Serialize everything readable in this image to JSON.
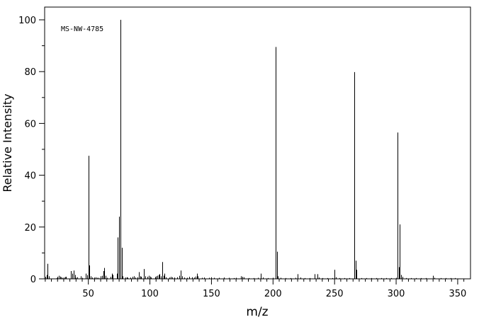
{
  "chart_data": {
    "type": "bar",
    "annotation": "MS-NW-4785",
    "xlabel": "m/z",
    "ylabel": "Relative Intensity",
    "xlim": [
      10,
      360
    ],
    "ylim": [
      0,
      104
    ],
    "x_ticks": [
      50,
      100,
      150,
      200,
      250,
      300,
      350
    ],
    "y_ticks": [
      0,
      20,
      40,
      60,
      80,
      100
    ],
    "grid": false,
    "legend": "none",
    "series": [
      {
        "peaks": [
          {
            "x": 15,
            "y": 0.8
          },
          {
            "x": 16,
            "y": 1.5
          },
          {
            "x": 17,
            "y": 5.8
          },
          {
            "x": 18,
            "y": 1.0
          },
          {
            "x": 24,
            "y": 0.3
          },
          {
            "x": 25,
            "y": 0.8
          },
          {
            "x": 26,
            "y": 1.2
          },
          {
            "x": 27,
            "y": 0.9
          },
          {
            "x": 28,
            "y": 0.6
          },
          {
            "x": 29,
            "y": 0.4
          },
          {
            "x": 30,
            "y": 0.5
          },
          {
            "x": 31,
            "y": 0.7
          },
          {
            "x": 32,
            "y": 0.8
          },
          {
            "x": 36,
            "y": 3.0
          },
          {
            "x": 37,
            "y": 2.0
          },
          {
            "x": 38,
            "y": 3.2
          },
          {
            "x": 39,
            "y": 1.5
          },
          {
            "x": 40,
            "y": 0.4
          },
          {
            "x": 41,
            "y": 0.6
          },
          {
            "x": 44,
            "y": 1.0
          },
          {
            "x": 45,
            "y": 0.4
          },
          {
            "x": 48,
            "y": 2.0
          },
          {
            "x": 49,
            "y": 1.4
          },
          {
            "x": 50,
            "y": 47.5
          },
          {
            "x": 51,
            "y": 5.2
          },
          {
            "x": 52,
            "y": 1.0
          },
          {
            "x": 53,
            "y": 0.5
          },
          {
            "x": 55,
            "y": 0.5
          },
          {
            "x": 56,
            "y": 0.6
          },
          {
            "x": 57,
            "y": 0.4
          },
          {
            "x": 58,
            "y": 0.4
          },
          {
            "x": 60,
            "y": 1.0
          },
          {
            "x": 61,
            "y": 1.2
          },
          {
            "x": 62,
            "y": 3.0
          },
          {
            "x": 63,
            "y": 4.2
          },
          {
            "x": 64,
            "y": 1.2
          },
          {
            "x": 65,
            "y": 0.4
          },
          {
            "x": 68,
            "y": 0.8
          },
          {
            "x": 69,
            "y": 2.0
          },
          {
            "x": 70,
            "y": 1.5
          },
          {
            "x": 73,
            "y": 2.0
          },
          {
            "x": 74,
            "y": 16.0
          },
          {
            "x": 75,
            "y": 24.0
          },
          {
            "x": 76,
            "y": 100.0
          },
          {
            "x": 77,
            "y": 12.0
          },
          {
            "x": 78,
            "y": 1.0
          },
          {
            "x": 80,
            "y": 0.5
          },
          {
            "x": 81,
            "y": 0.6
          },
          {
            "x": 82,
            "y": 0.4
          },
          {
            "x": 84,
            "y": 0.5
          },
          {
            "x": 86,
            "y": 0.8
          },
          {
            "x": 87,
            "y": 1.0
          },
          {
            "x": 88,
            "y": 0.5
          },
          {
            "x": 90,
            "y": 0.6
          },
          {
            "x": 91,
            "y": 2.6
          },
          {
            "x": 92,
            "y": 1.0
          },
          {
            "x": 93,
            "y": 0.8
          },
          {
            "x": 95,
            "y": 3.8
          },
          {
            "x": 96,
            "y": 1.0
          },
          {
            "x": 98,
            "y": 0.8
          },
          {
            "x": 99,
            "y": 1.2
          },
          {
            "x": 100,
            "y": 0.9
          },
          {
            "x": 101,
            "y": 0.5
          },
          {
            "x": 104,
            "y": 0.6
          },
          {
            "x": 105,
            "y": 1.0
          },
          {
            "x": 106,
            "y": 1.2
          },
          {
            "x": 107,
            "y": 1.5
          },
          {
            "x": 108,
            "y": 1.8
          },
          {
            "x": 109,
            "y": 1.0
          },
          {
            "x": 110,
            "y": 6.5
          },
          {
            "x": 111,
            "y": 1.2
          },
          {
            "x": 112,
            "y": 2.0
          },
          {
            "x": 113,
            "y": 0.6
          },
          {
            "x": 116,
            "y": 0.5
          },
          {
            "x": 117,
            "y": 0.8
          },
          {
            "x": 118,
            "y": 0.6
          },
          {
            "x": 120,
            "y": 0.5
          },
          {
            "x": 122,
            "y": 0.6
          },
          {
            "x": 124,
            "y": 1.2
          },
          {
            "x": 125,
            "y": 3.2
          },
          {
            "x": 126,
            "y": 1.0
          },
          {
            "x": 128,
            "y": 0.5
          },
          {
            "x": 130,
            "y": 0.4
          },
          {
            "x": 132,
            "y": 0.8
          },
          {
            "x": 134,
            "y": 0.6
          },
          {
            "x": 136,
            "y": 0.5
          },
          {
            "x": 137,
            "y": 0.9
          },
          {
            "x": 138,
            "y": 2.0
          },
          {
            "x": 139,
            "y": 1.0
          },
          {
            "x": 142,
            "y": 0.4
          },
          {
            "x": 144,
            "y": 0.5
          },
          {
            "x": 148,
            "y": 0.4
          },
          {
            "x": 150,
            "y": 0.6
          },
          {
            "x": 152,
            "y": 0.4
          },
          {
            "x": 156,
            "y": 0.4
          },
          {
            "x": 160,
            "y": 0.5
          },
          {
            "x": 164,
            "y": 0.4
          },
          {
            "x": 168,
            "y": 0.3
          },
          {
            "x": 170,
            "y": 0.4
          },
          {
            "x": 174,
            "y": 1.0
          },
          {
            "x": 175,
            "y": 0.8
          },
          {
            "x": 176,
            "y": 0.6
          },
          {
            "x": 180,
            "y": 0.3
          },
          {
            "x": 184,
            "y": 0.3
          },
          {
            "x": 188,
            "y": 0.4
          },
          {
            "x": 190,
            "y": 2.0
          },
          {
            "x": 192,
            "y": 0.5
          },
          {
            "x": 196,
            "y": 0.3
          },
          {
            "x": 200,
            "y": 0.4
          },
          {
            "x": 202,
            "y": 89.5
          },
          {
            "x": 203,
            "y": 10.5
          },
          {
            "x": 204,
            "y": 1.0
          },
          {
            "x": 206,
            "y": 0.4
          },
          {
            "x": 210,
            "y": 0.3
          },
          {
            "x": 214,
            "y": 0.3
          },
          {
            "x": 218,
            "y": 0.4
          },
          {
            "x": 220,
            "y": 1.8
          },
          {
            "x": 222,
            "y": 0.5
          },
          {
            "x": 226,
            "y": 0.3
          },
          {
            "x": 230,
            "y": 0.3
          },
          {
            "x": 234,
            "y": 1.8
          },
          {
            "x": 236,
            "y": 1.8
          },
          {
            "x": 237,
            "y": 0.5
          },
          {
            "x": 240,
            "y": 0.3
          },
          {
            "x": 244,
            "y": 0.3
          },
          {
            "x": 248,
            "y": 0.3
          },
          {
            "x": 250,
            "y": 3.5
          },
          {
            "x": 251,
            "y": 0.6
          },
          {
            "x": 254,
            "y": 0.3
          },
          {
            "x": 258,
            "y": 0.3
          },
          {
            "x": 262,
            "y": 0.3
          },
          {
            "x": 266,
            "y": 79.8
          },
          {
            "x": 267,
            "y": 7.0
          },
          {
            "x": 268,
            "y": 3.5
          },
          {
            "x": 272,
            "y": 0.3
          },
          {
            "x": 276,
            "y": 0.3
          },
          {
            "x": 280,
            "y": 0.3
          },
          {
            "x": 284,
            "y": 0.3
          },
          {
            "x": 288,
            "y": 0.3
          },
          {
            "x": 292,
            "y": 0.3
          },
          {
            "x": 296,
            "y": 0.3
          },
          {
            "x": 300,
            "y": 0.4
          },
          {
            "x": 301,
            "y": 56.5
          },
          {
            "x": 302,
            "y": 4.5
          },
          {
            "x": 303,
            "y": 21.0
          },
          {
            "x": 304,
            "y": 1.5
          },
          {
            "x": 305,
            "y": 0.8
          },
          {
            "x": 308,
            "y": 0.3
          },
          {
            "x": 312,
            "y": 0.3
          },
          {
            "x": 316,
            "y": 0.3
          },
          {
            "x": 320,
            "y": 0.3
          },
          {
            "x": 324,
            "y": 0.3
          },
          {
            "x": 330,
            "y": 1.2
          },
          {
            "x": 331,
            "y": 0.4
          },
          {
            "x": 336,
            "y": 0.3
          },
          {
            "x": 340,
            "y": 0.3
          },
          {
            "x": 344,
            "y": 0.3
          },
          {
            "x": 348,
            "y": 0.3
          }
        ]
      }
    ]
  }
}
